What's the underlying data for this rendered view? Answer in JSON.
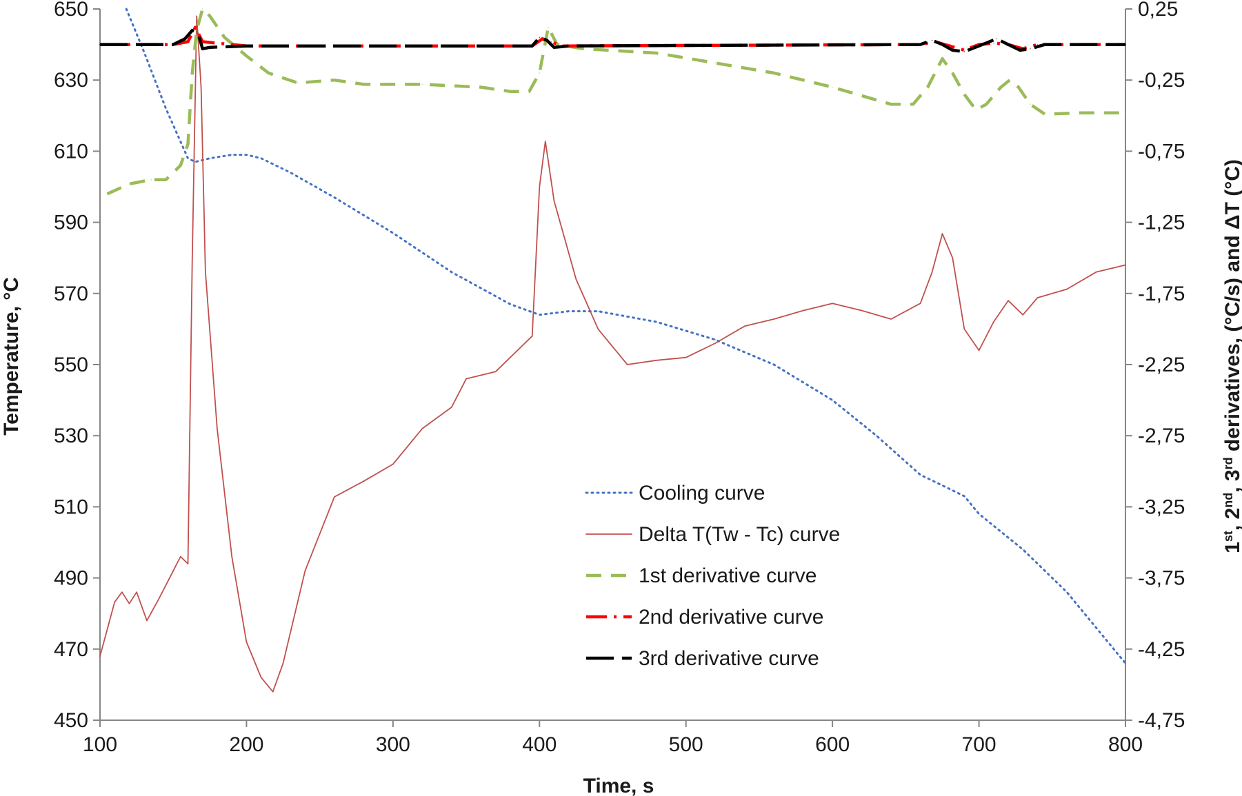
{
  "chart_data": {
    "type": "line",
    "xlabel": "Time, s",
    "ylabel": "Temperature, °C",
    "y2label_parts": [
      "1",
      "st",
      ", 2",
      "nd",
      ", 3",
      "rd",
      " derivatives, (°C/s) and ΔT (°C)"
    ],
    "xlim": [
      100,
      800
    ],
    "ylim": [
      450,
      650
    ],
    "y2lim": [
      -4.75,
      0.25
    ],
    "x_ticks": [
      "100",
      "200",
      "300",
      "400",
      "500",
      "600",
      "700",
      "800"
    ],
    "y_ticks": [
      "450",
      "470",
      "490",
      "510",
      "530",
      "550",
      "570",
      "590",
      "610",
      "630",
      "650"
    ],
    "y2_ticks": [
      "-4,75",
      "-4,25",
      "-3,75",
      "-3,25",
      "-2,75",
      "-2,25",
      "-1,75",
      "-1,25",
      "-0,75",
      "-0,25",
      "0,25"
    ],
    "grid": false,
    "legend_position": "lower-center",
    "series": [
      {
        "name": "Cooling curve",
        "axis": "left",
        "color": "#4472c4",
        "style": "dotted",
        "x": [
          118,
          130,
          145,
          160,
          165,
          175,
          190,
          200,
          210,
          230,
          260,
          300,
          340,
          380,
          400,
          420,
          440,
          480,
          520,
          560,
          600,
          630,
          660,
          675,
          690,
          700,
          730,
          760,
          800
        ],
        "y": [
          650,
          638,
          622,
          608,
          607,
          608,
          609,
          609,
          608,
          604,
          597,
          587,
          576,
          567,
          564,
          565,
          565,
          562,
          557,
          550,
          540,
          530,
          519,
          516,
          513,
          508,
          498,
          486,
          466
        ]
      },
      {
        "name": "Delta T(Tw - Tc) curve",
        "axis": "right",
        "color": "#c0504d",
        "style": "solid",
        "x": [
          100,
          110,
          115,
          120,
          125,
          132,
          140,
          150,
          155,
          160,
          163,
          166,
          169,
          172,
          180,
          190,
          200,
          210,
          218,
          225,
          240,
          260,
          280,
          300,
          320,
          340,
          350,
          370,
          380,
          395,
          400,
          404,
          410,
          425,
          440,
          460,
          480,
          500,
          520,
          540,
          560,
          580,
          600,
          620,
          640,
          660,
          668,
          675,
          682,
          690,
          700,
          710,
          720,
          730,
          740,
          760,
          780,
          800
        ],
        "y": [
          -4.3,
          -3.92,
          -3.85,
          -3.93,
          -3.85,
          -4.05,
          -3.9,
          -3.7,
          -3.6,
          -3.65,
          -1.5,
          0.2,
          -0.3,
          -1.6,
          -2.7,
          -3.6,
          -4.2,
          -4.45,
          -4.55,
          -4.35,
          -3.7,
          -3.18,
          -3.07,
          -2.95,
          -2.7,
          -2.55,
          -2.35,
          -2.3,
          -2.2,
          -2.05,
          -1.0,
          -0.68,
          -1.1,
          -1.65,
          -2.0,
          -2.25,
          -2.22,
          -2.2,
          -2.1,
          -1.98,
          -1.93,
          -1.87,
          -1.82,
          -1.87,
          -1.93,
          -1.82,
          -1.6,
          -1.33,
          -1.5,
          -2.0,
          -2.15,
          -1.95,
          -1.8,
          -1.9,
          -1.78,
          -1.72,
          -1.6,
          -1.55
        ]
      },
      {
        "name": "1st derivative curve",
        "axis": "right",
        "color": "#9bbb59",
        "style": "dashed",
        "x": [
          105,
          120,
          135,
          145,
          155,
          160,
          163,
          166,
          170,
          175,
          185,
          200,
          215,
          235,
          260,
          280,
          320,
          360,
          380,
          393,
          400,
          406,
          412,
          430,
          480,
          520,
          560,
          600,
          640,
          655,
          665,
          675,
          682,
          690,
          698,
          705,
          715,
          721,
          727,
          735,
          745,
          770,
          800
        ],
        "y": [
          -1.05,
          -0.98,
          -0.95,
          -0.95,
          -0.85,
          -0.7,
          -0.2,
          0.1,
          0.25,
          0.2,
          0.05,
          -0.08,
          -0.2,
          -0.27,
          -0.25,
          -0.28,
          -0.28,
          -0.3,
          -0.33,
          -0.33,
          -0.2,
          0.12,
          0.0,
          -0.03,
          -0.06,
          -0.13,
          -0.2,
          -0.3,
          -0.42,
          -0.42,
          -0.3,
          -0.1,
          -0.2,
          -0.35,
          -0.46,
          -0.42,
          -0.3,
          -0.25,
          -0.3,
          -0.42,
          -0.49,
          -0.48,
          -0.48
        ]
      },
      {
        "name": "2nd derivative curve",
        "axis": "right",
        "color": "#ff0000",
        "style": "dashdot",
        "x": [
          100,
          150,
          160,
          165,
          170,
          200,
          395,
          402,
          408,
          415,
          660,
          670,
          680,
          690,
          700,
          710,
          720,
          730,
          740,
          800
        ],
        "y": [
          0.0,
          0.0,
          0.02,
          0.12,
          0.02,
          -0.01,
          -0.01,
          0.04,
          0.02,
          -0.01,
          0.0,
          0.02,
          -0.01,
          -0.04,
          0.0,
          0.01,
          0.0,
          -0.03,
          0.0,
          0.0
        ]
      },
      {
        "name": "3rd derivative curve",
        "axis": "right",
        "color": "#000000",
        "style": "longdash",
        "x": [
          100,
          150,
          158,
          163,
          167,
          170,
          175,
          200,
          395,
          400,
          405,
          410,
          420,
          660,
          668,
          675,
          682,
          690,
          700,
          712,
          720,
          728,
          735,
          745,
          800
        ],
        "y": [
          0.0,
          0.0,
          0.04,
          0.1,
          0.08,
          -0.03,
          -0.02,
          -0.01,
          -0.01,
          0.05,
          0.03,
          -0.02,
          -0.01,
          0.0,
          0.03,
          0.0,
          -0.04,
          -0.05,
          -0.01,
          0.04,
          0.0,
          -0.04,
          -0.03,
          0.0,
          0.0
        ]
      }
    ]
  }
}
